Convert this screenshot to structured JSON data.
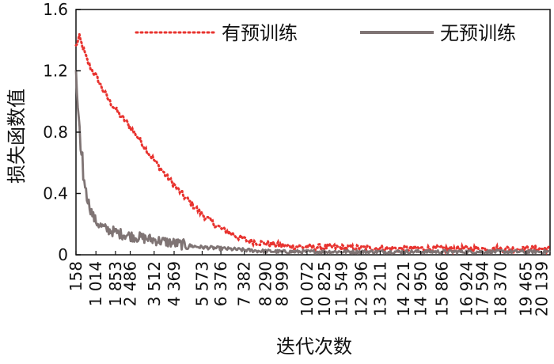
{
  "chart_data": {
    "type": "line",
    "title": "",
    "xlabel": "迭代次数",
    "ylabel": "损失函数值",
    "x_range": [
      158,
      20500
    ],
    "ylim": [
      0,
      1.6
    ],
    "yticks": [
      "0",
      "0.4",
      "0.8",
      "1.2",
      "1.6"
    ],
    "xticks": [
      {
        "label": "158",
        "value": 158
      },
      {
        "label": "1 014",
        "value": 1014
      },
      {
        "label": "1 853",
        "value": 1853
      },
      {
        "label": "2 486",
        "value": 2486
      },
      {
        "label": "3 512",
        "value": 3512
      },
      {
        "label": "4 369",
        "value": 4369
      },
      {
        "label": "5 573",
        "value": 5573
      },
      {
        "label": "6 376",
        "value": 6376
      },
      {
        "label": "7 382",
        "value": 7382
      },
      {
        "label": "8 290",
        "value": 8290
      },
      {
        "label": "8 999",
        "value": 8999
      },
      {
        "label": "10 072",
        "value": 10072
      },
      {
        "label": "10 825",
        "value": 10825
      },
      {
        "label": "11 549",
        "value": 11549
      },
      {
        "label": "12 396",
        "value": 12396
      },
      {
        "label": "13 211",
        "value": 13211
      },
      {
        "label": "14 221",
        "value": 14221
      },
      {
        "label": "14 950",
        "value": 14950
      },
      {
        "label": "15 866",
        "value": 15866
      },
      {
        "label": "16 924",
        "value": 16924
      },
      {
        "label": "17 594",
        "value": 17594
      },
      {
        "label": "18 370",
        "value": 18370
      },
      {
        "label": "19 465",
        "value": 19465
      },
      {
        "label": "20 139",
        "value": 20139
      }
    ],
    "legend_position": "top",
    "grid": false,
    "series": [
      {
        "name": "有预训练",
        "color": "#e8332f",
        "style": "dotted",
        "x": [
          158,
          300,
          500,
          700,
          1000,
          1300,
          1600,
          2000,
          2400,
          2800,
          3200,
          3600,
          4000,
          4400,
          4800,
          5200,
          5600,
          6000,
          6400,
          6800,
          7200,
          7600,
          8000,
          8500,
          9000,
          9500,
          10000,
          11000,
          12000,
          13000,
          14000,
          15000,
          16000,
          17000,
          18000,
          19000,
          20000,
          20500
        ],
        "values": [
          1.36,
          1.42,
          1.33,
          1.24,
          1.17,
          1.08,
          1.0,
          0.92,
          0.85,
          0.77,
          0.68,
          0.6,
          0.52,
          0.45,
          0.38,
          0.32,
          0.26,
          0.21,
          0.17,
          0.14,
          0.11,
          0.09,
          0.08,
          0.07,
          0.06,
          0.055,
          0.05,
          0.05,
          0.045,
          0.045,
          0.04,
          0.04,
          0.04,
          0.04,
          0.04,
          0.04,
          0.04,
          0.04
        ]
      },
      {
        "name": "无预训练",
        "color": "#7f7474",
        "style": "solid",
        "x": [
          158,
          200,
          260,
          320,
          400,
          500,
          600,
          700,
          800,
          900,
          1000,
          1200,
          1400,
          1600,
          1800,
          2000,
          2300,
          2600,
          3000,
          3400,
          3800,
          4200,
          4600,
          5000,
          5500,
          6000,
          6500,
          7000,
          7500,
          8000,
          9000,
          10000,
          12000,
          14000,
          16000,
          18000,
          20500
        ],
        "values": [
          1.18,
          1.05,
          0.9,
          0.75,
          0.6,
          0.48,
          0.4,
          0.34,
          0.29,
          0.25,
          0.22,
          0.19,
          0.17,
          0.16,
          0.15,
          0.14,
          0.13,
          0.12,
          0.11,
          0.1,
          0.09,
          0.08,
          0.07,
          0.06,
          0.05,
          0.045,
          0.04,
          0.035,
          0.03,
          0.025,
          0.02,
          0.02,
          0.02,
          0.02,
          0.02,
          0.02,
          0.02
        ]
      }
    ]
  }
}
